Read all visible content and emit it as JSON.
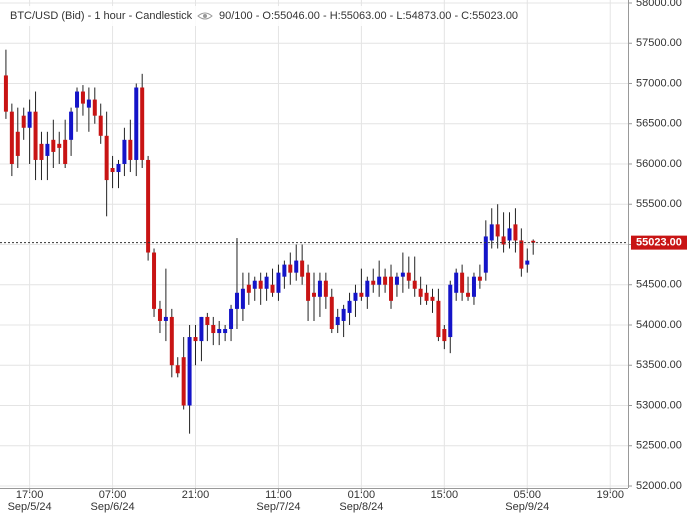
{
  "chart_data": {
    "type": "candlestick",
    "title": "BTC/USD (Bid) - 1 hour - Candlestick",
    "subtitle": "90/100 - O:55046.00 - H:55063.00 - L:54873.00 - C:55023.00",
    "x": [
      "2024-09-05T13:00",
      "2024-09-05T14:00",
      "2024-09-05T15:00",
      "2024-09-05T16:00",
      "2024-09-05T17:00",
      "2024-09-05T18:00",
      "2024-09-05T19:00",
      "2024-09-05T20:00",
      "2024-09-05T21:00",
      "2024-09-05T22:00",
      "2024-09-05T23:00",
      "2024-09-06T00:00",
      "2024-09-06T01:00",
      "2024-09-06T02:00",
      "2024-09-06T03:00",
      "2024-09-06T04:00",
      "2024-09-06T05:00",
      "2024-09-06T06:00",
      "2024-09-06T07:00",
      "2024-09-06T08:00",
      "2024-09-06T09:00",
      "2024-09-06T10:00",
      "2024-09-06T11:00",
      "2024-09-06T12:00",
      "2024-09-06T13:00",
      "2024-09-06T14:00",
      "2024-09-06T15:00",
      "2024-09-06T16:00",
      "2024-09-06T17:00",
      "2024-09-06T18:00",
      "2024-09-06T19:00",
      "2024-09-06T20:00",
      "2024-09-06T21:00",
      "2024-09-06T22:00",
      "2024-09-06T23:00",
      "2024-09-07T00:00",
      "2024-09-07T01:00",
      "2024-09-07T02:00",
      "2024-09-07T03:00",
      "2024-09-07T04:00",
      "2024-09-07T05:00",
      "2024-09-07T06:00",
      "2024-09-07T07:00",
      "2024-09-07T08:00",
      "2024-09-07T09:00",
      "2024-09-07T10:00",
      "2024-09-07T11:00",
      "2024-09-07T12:00",
      "2024-09-07T13:00",
      "2024-09-07T14:00",
      "2024-09-07T15:00",
      "2024-09-07T16:00",
      "2024-09-07T17:00",
      "2024-09-07T18:00",
      "2024-09-07T19:00",
      "2024-09-07T20:00",
      "2024-09-07T21:00",
      "2024-09-07T22:00",
      "2024-09-07T23:00",
      "2024-09-08T00:00",
      "2024-09-08T01:00",
      "2024-09-08T02:00",
      "2024-09-08T03:00",
      "2024-09-08T04:00",
      "2024-09-08T05:00",
      "2024-09-08T06:00",
      "2024-09-08T07:00",
      "2024-09-08T08:00",
      "2024-09-08T09:00",
      "2024-09-08T10:00",
      "2024-09-08T11:00",
      "2024-09-08T12:00",
      "2024-09-08T13:00",
      "2024-09-08T14:00",
      "2024-09-08T15:00",
      "2024-09-08T16:00",
      "2024-09-08T17:00",
      "2024-09-08T18:00",
      "2024-09-08T19:00",
      "2024-09-08T20:00",
      "2024-09-08T21:00",
      "2024-09-08T22:00",
      "2024-09-08T23:00",
      "2024-09-09T00:00",
      "2024-09-09T01:00",
      "2024-09-09T02:00",
      "2024-09-09T03:00",
      "2024-09-09T04:00",
      "2024-09-09T05:00",
      "2024-09-09T06:00"
    ],
    "open": [
      57100,
      56650,
      56400,
      56600,
      56450,
      56650,
      56250,
      56100,
      56300,
      56250,
      56300,
      56300,
      56700,
      56900,
      56700,
      56800,
      56600,
      56350,
      55950,
      55900,
      56000,
      56300,
      56050,
      56950,
      56050,
      54900,
      54200,
      54050,
      54100,
      53500,
      53600,
      53000,
      53850,
      53800,
      54100,
      54000,
      53900,
      53900,
      53950,
      54200,
      54200,
      54500,
      54450,
      54550,
      54450,
      54500,
      54400,
      54600,
      54750,
      54650,
      54800,
      54650,
      54400,
      54350,
      54550,
      54350,
      54000,
      54050,
      54150,
      54300,
      54400,
      54350,
      54550,
      54500,
      54600,
      54600,
      54500,
      54600,
      54650,
      54550,
      54450,
      54400,
      54350,
      54300,
      53950,
      53850,
      54400,
      54650,
      54400,
      54350,
      54600,
      54650,
      55050,
      55250,
      55100,
      55050,
      55250,
      55050,
      54750,
      55046
    ],
    "high": [
      57420,
      56750,
      56700,
      56700,
      56800,
      56900,
      56400,
      56400,
      56550,
      56400,
      56550,
      56700,
      56950,
      56980,
      56950,
      56950,
      56750,
      56650,
      56100,
      56050,
      56450,
      56550,
      57000,
      57120,
      56100,
      54950,
      54300,
      54700,
      54200,
      53600,
      53850,
      54000,
      54000,
      54100,
      54150,
      54100,
      54050,
      54000,
      54250,
      55080,
      54650,
      54650,
      54600,
      54650,
      54650,
      54700,
      54750,
      54800,
      54900,
      55000,
      55000,
      54750,
      54650,
      54650,
      54650,
      54450,
      54200,
      54250,
      54400,
      54500,
      54700,
      54600,
      54700,
      54800,
      54700,
      54750,
      54650,
      54900,
      54850,
      54850,
      54600,
      54500,
      54450,
      54450,
      54000,
      54550,
      54700,
      54750,
      54600,
      54650,
      54750,
      55300,
      55450,
      55500,
      55400,
      55400,
      55450,
      55200,
      54950,
      55063
    ],
    "low": [
      56560,
      55850,
      55950,
      56300,
      56000,
      55800,
      55800,
      55800,
      55950,
      56000,
      55950,
      56100,
      56400,
      56600,
      56400,
      56500,
      56250,
      55350,
      55700,
      55700,
      55850,
      55900,
      55850,
      55950,
      54800,
      54100,
      53900,
      53800,
      53350,
      53350,
      52950,
      52650,
      53500,
      53550,
      53800,
      53750,
      53750,
      53800,
      53800,
      53950,
      54050,
      54250,
      54300,
      54250,
      54300,
      54350,
      54300,
      54450,
      54500,
      54550,
      54500,
      54050,
      54050,
      54100,
      54200,
      53900,
      53900,
      53850,
      54000,
      54100,
      54300,
      54200,
      54400,
      54350,
      54400,
      54200,
      54350,
      54400,
      54450,
      54350,
      54250,
      54250,
      54150,
      53800,
      53700,
      53650,
      54300,
      54300,
      54300,
      54250,
      54450,
      54550,
      54950,
      54950,
      54900,
      54950,
      54900,
      54600,
      54650,
      54873
    ],
    "close": [
      56650,
      56000,
      56100,
      56450,
      56650,
      56050,
      56050,
      56250,
      56150,
      56200,
      56000,
      56650,
      56900,
      56750,
      56800,
      56600,
      56350,
      55800,
      55900,
      56000,
      56300,
      56050,
      56950,
      56050,
      54900,
      54200,
      54050,
      54100,
      53500,
      53400,
      53000,
      53850,
      53800,
      54100,
      54000,
      53900,
      53950,
      53950,
      54200,
      54400,
      54450,
      54400,
      54550,
      54450,
      54600,
      54400,
      54650,
      54750,
      54650,
      54800,
      54600,
      54300,
      54350,
      54550,
      54350,
      53950,
      54100,
      54200,
      54300,
      54400,
      54350,
      54550,
      54500,
      54600,
      54500,
      54300,
      54600,
      54650,
      54550,
      54450,
      54350,
      54300,
      54300,
      53850,
      53800,
      54500,
      54650,
      54400,
      54350,
      54600,
      54550,
      55100,
      55250,
      55100,
      55000,
      55200,
      55050,
      54700,
      54800,
      55023
    ],
    "up_color": "#1414c8",
    "down_color": "#c81414",
    "xlim": [
      "2024-09-05T12:00",
      "2024-09-09T22:00"
    ],
    "xticks": [
      {
        "value": "2024-09-05T17:00",
        "label": "17:00",
        "date": "Sep/5/24"
      },
      {
        "value": "2024-09-06T07:00",
        "label": "07:00",
        "date": "Sep/6/24"
      },
      {
        "value": "2024-09-06T21:00",
        "label": "21:00"
      },
      {
        "value": "2024-09-07T11:00",
        "label": "11:00",
        "date": "Sep/7/24"
      },
      {
        "value": "2024-09-08T01:00",
        "label": "01:00",
        "date": "Sep/8/24"
      },
      {
        "value": "2024-09-08T15:00",
        "label": "15:00"
      },
      {
        "value": "2024-09-09T05:00",
        "label": "05:00",
        "date": "Sep/9/24"
      },
      {
        "value": "2024-09-09T19:00",
        "label": "19:00"
      }
    ],
    "ylim": [
      51975,
      58037
    ],
    "yticks": [
      {
        "value": 52000,
        "label": "52000.00"
      },
      {
        "value": 52500,
        "label": "52500.00"
      },
      {
        "value": 53000,
        "label": "53000.00"
      },
      {
        "value": 53500,
        "label": "53500.00"
      },
      {
        "value": 54000,
        "label": "54000.00"
      },
      {
        "value": 54500,
        "label": "54500.00"
      },
      {
        "value": 55000,
        "label": "55000.00"
      },
      {
        "value": 55500,
        "label": "55500.00"
      },
      {
        "value": 56000,
        "label": "56000.00"
      },
      {
        "value": 56500,
        "label": "56500.00"
      },
      {
        "value": 57000,
        "label": "57000.00"
      },
      {
        "value": 57500,
        "label": "57500.00"
      },
      {
        "value": 58000,
        "label": "58000.00"
      }
    ],
    "last_price": {
      "value": 55023,
      "label": "55023.00"
    },
    "last_price_color": "#c81414",
    "grid": true
  }
}
